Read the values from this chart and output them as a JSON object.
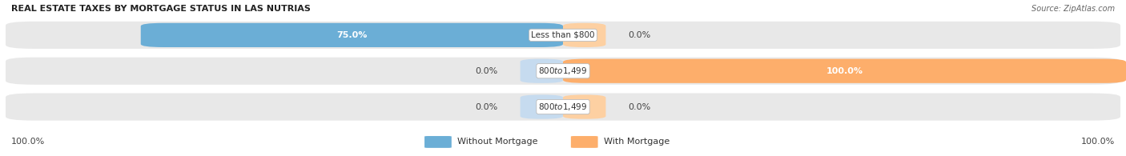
{
  "title": "REAL ESTATE TAXES BY MORTGAGE STATUS IN LAS NUTRIAS",
  "source": "Source: ZipAtlas.com",
  "rows": [
    {
      "label": "Less than $800",
      "without_mortgage": 75.0,
      "with_mortgage": 0.0,
      "left_label": "75.0%",
      "right_label": "0.0%"
    },
    {
      "label": "$800 to $1,499",
      "without_mortgage": 0.0,
      "with_mortgage": 100.0,
      "left_label": "0.0%",
      "right_label": "100.0%"
    },
    {
      "label": "$800 to $1,499",
      "without_mortgage": 0.0,
      "with_mortgage": 0.0,
      "left_label": "0.0%",
      "right_label": "0.0%"
    }
  ],
  "color_without": "#6baed6",
  "color_with": "#fdae6b",
  "color_without_light": "#c6dbef",
  "color_with_light": "#fdd0a2",
  "bg_bar": "#e8e8e8",
  "legend_left": "Without Mortgage",
  "legend_right": "With Mortgage",
  "bottom_left_label": "100.0%",
  "bottom_right_label": "100.0%",
  "figsize": [
    14.06,
    1.95
  ],
  "dpi": 100
}
